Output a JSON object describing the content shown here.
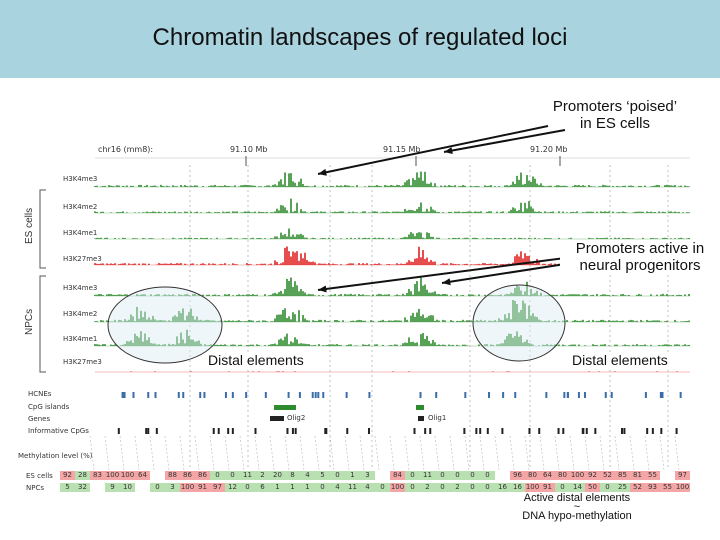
{
  "title": "Chromatin landscapes of regulated loci",
  "annotations": {
    "poised_line1": "Promoters ‘poised’",
    "poised_line2": "in ES cells",
    "active_line1": "Promoters active in",
    "active_line2": "neural progenitors",
    "distal_left": "Distal elements",
    "distal_right": "Distal elements",
    "bottom_line1": "Active distal elements",
    "bottom_tilde": "~",
    "bottom_line2": "DNA hypo-methylation"
  },
  "browser": {
    "chrom": "chr16 (mm8):",
    "ticks": [
      "91.10 Mb",
      "91.15 Mb",
      "91.20 Mb"
    ],
    "groups": {
      "es": "ES cells",
      "npc": "NPCs"
    },
    "es_tracks": [
      "H3K4me3",
      "H3K4me2",
      "H3K4me1",
      "H3K27me3"
    ],
    "npc_tracks": [
      "H3K4me3",
      "H3K4me2",
      "H3K4me1",
      "H3K27me3"
    ],
    "feature_tracks": [
      "HCNEs",
      "CpG islands",
      "Genes",
      "Informative CpGs"
    ],
    "genes": [
      "Olig2",
      "Olig1"
    ],
    "methylation_label": "Methylation level (%)",
    "es_row_label": "ES cells",
    "npc_row_label": "NPCs",
    "es_values": [
      "92",
      "28",
      "83",
      "100",
      "100",
      "64",
      "",
      "88",
      "86",
      "86",
      "0",
      "0",
      "11",
      "2",
      "20",
      "8",
      "4",
      "5",
      "0",
      "1",
      "3",
      "",
      "84",
      "0",
      "11",
      "0",
      "0",
      "0",
      "0",
      "",
      "96",
      "80",
      "64",
      "80",
      "100",
      "92",
      "52",
      "85",
      "81",
      "55",
      "",
      "97"
    ],
    "npc_values": [
      "5",
      "32",
      "",
      "9",
      "10",
      "",
      "0",
      "3",
      "100",
      "91",
      "97",
      "12",
      "0",
      "6",
      "1",
      "1",
      "1",
      "0",
      "4",
      "11",
      "4",
      "0",
      "100",
      "0",
      "2",
      "0",
      "2",
      "0",
      "0",
      "16",
      "16",
      "100",
      "91",
      "0",
      "14",
      "50",
      "0",
      "25",
      "52",
      "93",
      "55",
      "100"
    ]
  },
  "colors": {
    "title_bg": "#a9d3df",
    "active_mark": "#2e8b2e",
    "repressive_mark": "#e02020",
    "high_meth": "#f4a6a6",
    "low_meth": "#b8e0b0"
  }
}
